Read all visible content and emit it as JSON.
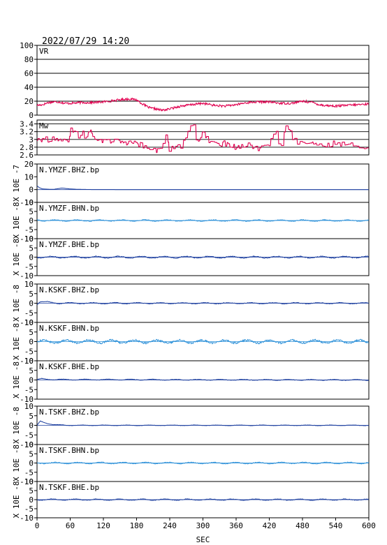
{
  "chart_data": {
    "type": "line",
    "title": "2022/07/29  14:20",
    "xlabel": "SEC",
    "xlim": [
      0,
      600
    ],
    "xticks": [
      0,
      60,
      120,
      180,
      240,
      300,
      360,
      420,
      480,
      540,
      600
    ],
    "colors": {
      "red": "#e0004f",
      "blue": "#1a3d9e",
      "lightblue": "#2a8fd8",
      "axis": "#000000"
    },
    "panels": [
      {
        "id": "vr",
        "name": "VR",
        "ylabel": "",
        "ylim": [
          0,
          100
        ],
        "yticks": [
          0,
          20,
          40,
          60,
          80,
          100
        ],
        "grid": true,
        "color": "#e0004f",
        "keypoints": [
          [
            0,
            14
          ],
          [
            10,
            15
          ],
          [
            20,
            18
          ],
          [
            30,
            19
          ],
          [
            40,
            19
          ],
          [
            50,
            17
          ],
          [
            60,
            17
          ],
          [
            80,
            18
          ],
          [
            100,
            18
          ],
          [
            120,
            19
          ],
          [
            140,
            21
          ],
          [
            150,
            22
          ],
          [
            160,
            23
          ],
          [
            170,
            23
          ],
          [
            180,
            22
          ],
          [
            185,
            19
          ],
          [
            195,
            14
          ],
          [
            205,
            10
          ],
          [
            215,
            9
          ],
          [
            225,
            7
          ],
          [
            235,
            8
          ],
          [
            245,
            10
          ],
          [
            260,
            13
          ],
          [
            280,
            15
          ],
          [
            300,
            17
          ],
          [
            320,
            14
          ],
          [
            340,
            13
          ],
          [
            360,
            15
          ],
          [
            380,
            18
          ],
          [
            400,
            19
          ],
          [
            420,
            19
          ],
          [
            440,
            17
          ],
          [
            460,
            17
          ],
          [
            480,
            20
          ],
          [
            500,
            18
          ],
          [
            510,
            15
          ],
          [
            520,
            14
          ],
          [
            540,
            13
          ],
          [
            560,
            14
          ],
          [
            580,
            15
          ],
          [
            600,
            16
          ]
        ]
      },
      {
        "id": "mw",
        "name": "Mw",
        "ylabel": "",
        "ylim": [
          2.6,
          3.5
        ],
        "yticks": [
          2.6,
          2.8,
          3.0,
          3.2,
          3.4
        ],
        "grid": true,
        "color": "#e0004f",
        "keypoints": [
          [
            0,
            3.0
          ],
          [
            58,
            3.0
          ],
          [
            60,
            3.2
          ],
          [
            62,
            3.4
          ],
          [
            64,
            3.1
          ],
          [
            70,
            3.3
          ],
          [
            76,
            3.0
          ],
          [
            82,
            3.3
          ],
          [
            88,
            3.0
          ],
          [
            96,
            3.25
          ],
          [
            104,
            3.0
          ],
          [
            114,
            3.0
          ],
          [
            120,
            2.95
          ],
          [
            150,
            2.95
          ],
          [
            170,
            2.9
          ],
          [
            190,
            2.85
          ],
          [
            205,
            2.8
          ],
          [
            220,
            2.7
          ],
          [
            226,
            2.95
          ],
          [
            230,
            2.8
          ],
          [
            236,
            3.3
          ],
          [
            238,
            2.7
          ],
          [
            244,
            2.8
          ],
          [
            260,
            2.8
          ],
          [
            272,
            3.1
          ],
          [
            280,
            3.5
          ],
          [
            290,
            2.9
          ],
          [
            300,
            3.2
          ],
          [
            310,
            3.0
          ],
          [
            320,
            2.85
          ],
          [
            340,
            2.9
          ],
          [
            360,
            2.8
          ],
          [
            380,
            2.85
          ],
          [
            400,
            2.75
          ],
          [
            420,
            2.9
          ],
          [
            432,
            3.2
          ],
          [
            440,
            2.8
          ],
          [
            452,
            3.4
          ],
          [
            462,
            3.0
          ],
          [
            476,
            2.9
          ],
          [
            500,
            2.9
          ],
          [
            520,
            2.85
          ],
          [
            540,
            2.9
          ],
          [
            560,
            2.85
          ],
          [
            580,
            2.85
          ],
          [
            600,
            2.8
          ]
        ]
      },
      {
        "id": "ymzf_bhz",
        "name": "N.YMZF.BHZ.bp",
        "ylabel": "X 10E -7",
        "ylim": [
          -10,
          20
        ],
        "yticks": [
          -10,
          0,
          10,
          20
        ],
        "color": "#1a3d9e",
        "keypoints": [
          [
            0,
            3
          ],
          [
            4,
            1.5
          ],
          [
            10,
            0.5
          ],
          [
            20,
            0.3
          ],
          [
            30,
            0.2
          ],
          [
            45,
            1.2
          ],
          [
            60,
            0.5
          ],
          [
            75,
            0.2
          ],
          [
            100,
            0.05
          ],
          [
            150,
            0
          ],
          [
            600,
            0
          ]
        ]
      },
      {
        "id": "ymzf_bhn",
        "name": "N.YMZF.BHN.bp",
        "ylabel": "X 10E -8",
        "ylim": [
          -10,
          10
        ],
        "yticks": [
          -10,
          -5,
          0,
          5,
          10
        ],
        "color": "#2a8fd8",
        "keypoints": [
          [
            0,
            0.5
          ],
          [
            10,
            0
          ],
          [
            600,
            0
          ]
        ],
        "wiggle": 0.5
      },
      {
        "id": "ymzf_bhe",
        "name": "N.YMZF.BHE.bp",
        "ylabel": "X 10E -8",
        "ylim": [
          -10,
          10
        ],
        "yticks": [
          -10,
          -5,
          0,
          5,
          10
        ],
        "color": "#1a3d9e",
        "keypoints": [
          [
            0,
            0
          ],
          [
            600,
            0
          ]
        ],
        "wiggle": 0.6
      },
      {
        "id": "kskf_bhz",
        "name": "N.KSKF.BHZ.bp",
        "ylabel": "X 10E -8",
        "ylim": [
          -10,
          10
        ],
        "yticks": [
          -10,
          -5,
          0,
          5,
          10
        ],
        "color": "#1a3d9e",
        "keypoints": [
          [
            0,
            -0.5
          ],
          [
            6,
            0.8
          ],
          [
            20,
            0.5
          ],
          [
            40,
            0
          ],
          [
            600,
            0
          ]
        ],
        "wiggle": 0.4
      },
      {
        "id": "kskf_bhn",
        "name": "N.KSKF.BHN.bp",
        "ylabel": "X 10E -8",
        "ylim": [
          -10,
          10
        ],
        "yticks": [
          -10,
          -5,
          0,
          5,
          10
        ],
        "color": "#2a8fd8",
        "keypoints": [
          [
            0,
            0
          ],
          [
            600,
            0
          ]
        ],
        "wiggle": 1.1
      },
      {
        "id": "kskf_bhe",
        "name": "N.KSKF.BHE.bp",
        "ylabel": "X 10E -8",
        "ylim": [
          -10,
          10
        ],
        "yticks": [
          -10,
          -5,
          0,
          5,
          10
        ],
        "color": "#1a3d9e",
        "keypoints": [
          [
            0,
            0
          ],
          [
            8,
            0.6
          ],
          [
            30,
            0.2
          ],
          [
            600,
            0
          ]
        ],
        "wiggle": 0.3
      },
      {
        "id": "tskf_bhz",
        "name": "N.TSKF.BHZ.bp",
        "ylabel": "X 10E -8",
        "ylim": [
          -10,
          10
        ],
        "yticks": [
          -10,
          -5,
          0,
          5,
          10
        ],
        "color": "#1a3d9e",
        "keypoints": [
          [
            0,
            0
          ],
          [
            6,
            2.2
          ],
          [
            14,
            1.4
          ],
          [
            30,
            0.3
          ],
          [
            60,
            0
          ],
          [
            600,
            0
          ]
        ],
        "wiggle": 0.2
      },
      {
        "id": "tskf_bhn",
        "name": "N.TSKF.BHN.bp",
        "ylabel": "X 10E -8",
        "ylim": [
          -10,
          10
        ],
        "yticks": [
          -10,
          -5,
          0,
          5,
          10
        ],
        "color": "#2a8fd8",
        "keypoints": [
          [
            0,
            0
          ],
          [
            600,
            0
          ]
        ],
        "wiggle": 0.5
      },
      {
        "id": "tskf_bhe",
        "name": "N.TSKF.BHE.bp",
        "ylabel": "X 10E -8",
        "ylim": [
          -10,
          10
        ],
        "yticks": [
          -10,
          -5,
          0,
          5,
          10
        ],
        "color": "#1a3d9e",
        "keypoints": [
          [
            0,
            0
          ],
          [
            600,
            0
          ]
        ],
        "wiggle": 0.45
      }
    ]
  }
}
